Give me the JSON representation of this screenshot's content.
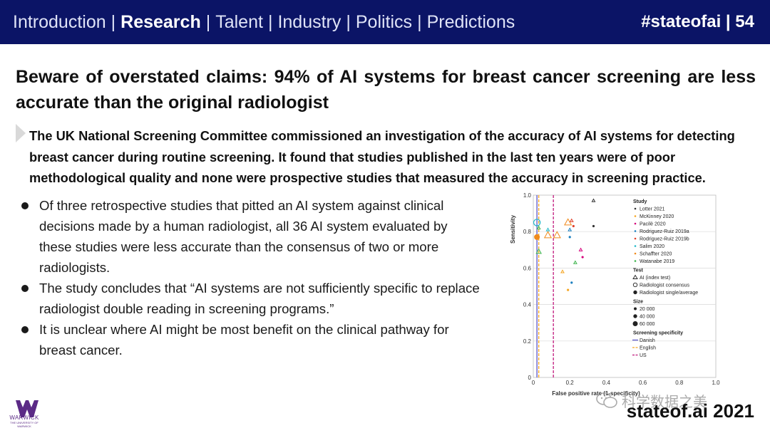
{
  "header": {
    "nav": [
      {
        "label": "Introduction",
        "active": false
      },
      {
        "label": "Research",
        "active": true
      },
      {
        "label": "Talent",
        "active": false
      },
      {
        "label": "Industry",
        "active": false
      },
      {
        "label": "Politics",
        "active": false
      },
      {
        "label": "Predictions",
        "active": false
      }
    ],
    "separator": "|",
    "tag": "#stateofai | 54",
    "background_color": "#0b1466"
  },
  "headline": "Beware of overstated claims: 94% of AI systems for breast cancer screening are less accurate than the original radiologist",
  "summary": "The UK National Screening Committee commissioned an investigation of the accuracy of AI systems for detecting breast cancer during routine screening. It found that studies published in the last ten years were of poor methodological quality and none were prospective studies that measured the accuracy in screening practice.",
  "bullets": [
    "Of three retrospective studies that pitted an AI system against clinical decisions made by a human radiologist, all 36 AI system evaluated by these studies were less accurate than the consensus of two or more radiologists.",
    "The study concludes that “AI systems are not sufficiently specific to replace radiologist double reading in screening programs.”",
    "It is unclear where AI might be most benefit on the clinical pathway for breast cancer."
  ],
  "footer": {
    "logo_text": "WARWICK",
    "logo_subtext": "THE UNIVERSITY OF WARWICK",
    "watermark": "科学数据之美",
    "watermark_icon": "wechat-icon",
    "brand": "stateof.ai 2021"
  },
  "chart_data": {
    "type": "scatter",
    "xlabel": "False positive rate (1-specificity)",
    "ylabel": "Sensitivity",
    "xlim": [
      0,
      1.0
    ],
    "ylim": [
      0,
      1.0
    ],
    "x_ticks": [
      "0",
      "0.2",
      "0.4",
      "0.6",
      "0.8",
      "1.0"
    ],
    "y_ticks": [
      "0",
      "0.2",
      "0.4",
      "0.6",
      "0.8",
      "1.0"
    ],
    "grid": true,
    "legend_position": "right",
    "legend": {
      "study_title": "Study",
      "studies": [
        {
          "name": "Lotter 2021",
          "color": "#333333"
        },
        {
          "name": "McKinney 2020",
          "color": "#f5a623"
        },
        {
          "name": "Pacilè 2020",
          "color": "#d6007a"
        },
        {
          "name": "Rodriguez-Ruiz 2019a",
          "color": "#1a7fbf"
        },
        {
          "name": "Rodriguez-Ruiz 2019b",
          "color": "#e0412b"
        },
        {
          "name": "Salim 2020",
          "color": "#1fb7c9"
        },
        {
          "name": "Schaffter 2020",
          "color": "#f08a1c"
        },
        {
          "name": "Watanabe 2019",
          "color": "#3cb44b"
        }
      ],
      "test_title": "Test",
      "tests": [
        "AI (index test)",
        "Radiologist consensus",
        "Radiologist single/average"
      ],
      "size_title": "Size",
      "sizes": [
        "20 000",
        "40 000",
        "60 000"
      ],
      "specificity_title": "Screening specificity",
      "specificity": [
        {
          "name": "Danish",
          "color": "#5a55c8",
          "x": 0.02,
          "dash": "solid"
        },
        {
          "name": "English",
          "color": "#f5a623",
          "x": 0.03,
          "dash": "dashed"
        },
        {
          "name": "US",
          "color": "#c0187c",
          "x": 0.11,
          "dash": "dashed"
        }
      ]
    },
    "points": [
      {
        "x": 0.33,
        "y": 0.97,
        "study": 0,
        "test": "ai",
        "size": 1
      },
      {
        "x": 0.33,
        "y": 0.83,
        "study": 0,
        "test": "single",
        "size": 1
      },
      {
        "x": 0.19,
        "y": 0.85,
        "study": 6,
        "test": "ai",
        "size": 3
      },
      {
        "x": 0.21,
        "y": 0.86,
        "study": 4,
        "test": "ai",
        "size": 1
      },
      {
        "x": 0.22,
        "y": 0.83,
        "study": 4,
        "test": "single",
        "size": 1
      },
      {
        "x": 0.02,
        "y": 0.85,
        "study": 5,
        "test": "consensus",
        "size": 3
      },
      {
        "x": 0.03,
        "y": 0.82,
        "study": 7,
        "test": "ai",
        "size": 1
      },
      {
        "x": 0.08,
        "y": 0.81,
        "study": 5,
        "test": "ai",
        "size": 1
      },
      {
        "x": 0.02,
        "y": 0.77,
        "study": 6,
        "test": "single",
        "size": 3
      },
      {
        "x": 0.08,
        "y": 0.78,
        "study": 6,
        "test": "ai",
        "size": 3
      },
      {
        "x": 0.13,
        "y": 0.78,
        "study": 6,
        "test": "ai",
        "size": 3
      },
      {
        "x": 0.2,
        "y": 0.81,
        "study": 3,
        "test": "ai",
        "size": 1
      },
      {
        "x": 0.2,
        "y": 0.77,
        "study": 3,
        "test": "single",
        "size": 1
      },
      {
        "x": 0.03,
        "y": 0.69,
        "study": 7,
        "test": "ai",
        "size": 2
      },
      {
        "x": 0.26,
        "y": 0.7,
        "study": 2,
        "test": "ai",
        "size": 1
      },
      {
        "x": 0.27,
        "y": 0.66,
        "study": 2,
        "test": "single",
        "size": 1
      },
      {
        "x": 0.23,
        "y": 0.63,
        "study": 7,
        "test": "ai",
        "size": 1
      },
      {
        "x": 0.16,
        "y": 0.58,
        "study": 1,
        "test": "ai",
        "size": 1
      },
      {
        "x": 0.21,
        "y": 0.52,
        "study": 3,
        "test": "single",
        "size": 1
      },
      {
        "x": 0.19,
        "y": 0.48,
        "study": 1,
        "test": "single",
        "size": 1
      }
    ]
  }
}
